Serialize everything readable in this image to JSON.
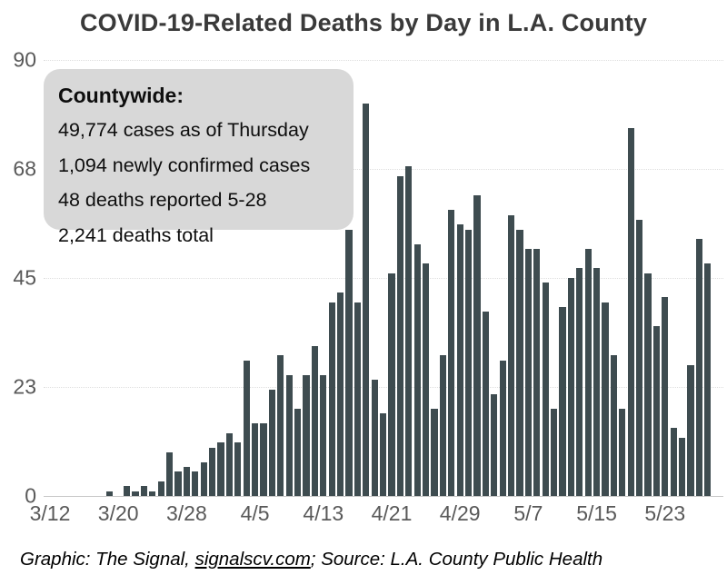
{
  "title": "COVID-19-Related Deaths by Day in L.A. County",
  "annotation": {
    "heading": "Countywide:",
    "lines": [
      "49,774 cases as of Thursday",
      "1,094 newly confirmed cases",
      "48 deaths reported 5-28",
      "2,241 deaths total"
    ]
  },
  "footer": {
    "prefix": "Graphic: The Signal, ",
    "link": "signalscv.com",
    "suffix": "; Source: L.A. County Public Health"
  },
  "colors": {
    "bar": "#3e4c50",
    "annotation_bg": "#d8d8d8",
    "grid": "#dedede",
    "axis_text": "#595959",
    "title_text": "#3a3a3a"
  },
  "chart_data": {
    "type": "bar",
    "title": "COVID-19-Related Deaths by Day in L.A. County",
    "xlabel": "",
    "ylabel": "",
    "ylim": [
      0,
      90
    ],
    "grid": "horizontal-dotted",
    "legend": "none",
    "y_ticks": [
      0,
      23,
      45,
      68,
      90
    ],
    "x_tick_labels": [
      "3/12",
      "3/20",
      "3/28",
      "4/5",
      "4/13",
      "4/21",
      "4/29",
      "5/7",
      "5/15",
      "5/23"
    ],
    "x": [
      "3/12",
      "3/13",
      "3/14",
      "3/15",
      "3/16",
      "3/17",
      "3/18",
      "3/19",
      "3/20",
      "3/21",
      "3/22",
      "3/23",
      "3/24",
      "3/25",
      "3/26",
      "3/27",
      "3/28",
      "3/29",
      "3/30",
      "3/31",
      "4/1",
      "4/2",
      "4/3",
      "4/4",
      "4/5",
      "4/6",
      "4/7",
      "4/8",
      "4/9",
      "4/10",
      "4/11",
      "4/12",
      "4/13",
      "4/14",
      "4/15",
      "4/16",
      "4/17",
      "4/18",
      "4/19",
      "4/20",
      "4/21",
      "4/22",
      "4/23",
      "4/24",
      "4/25",
      "4/26",
      "4/27",
      "4/28",
      "4/29",
      "4/30",
      "5/1",
      "5/2",
      "5/3",
      "5/4",
      "5/5",
      "5/6",
      "5/7",
      "5/8",
      "5/9",
      "5/10",
      "5/11",
      "5/12",
      "5/13",
      "5/14",
      "5/15",
      "5/16",
      "5/17",
      "5/18",
      "5/19",
      "5/20",
      "5/21",
      "5/22",
      "5/23",
      "5/24",
      "5/25",
      "5/26",
      "5/27",
      "5/28"
    ],
    "values": [
      0,
      0,
      0,
      0,
      0,
      0,
      0,
      1,
      0,
      2,
      1,
      2,
      1,
      3,
      9,
      5,
      6,
      5,
      7,
      10,
      11,
      13,
      11,
      28,
      15,
      15,
      22,
      29,
      25,
      18,
      25,
      31,
      25,
      40,
      42,
      55,
      40,
      81,
      24,
      17,
      46,
      66,
      68,
      52,
      48,
      18,
      29,
      59,
      56,
      55,
      62,
      38,
      21,
      28,
      58,
      55,
      51,
      51,
      44,
      18,
      39,
      45,
      47,
      51,
      47,
      40,
      29,
      18,
      76,
      57,
      46,
      35,
      41,
      14,
      12,
      27,
      53,
      48
    ]
  }
}
